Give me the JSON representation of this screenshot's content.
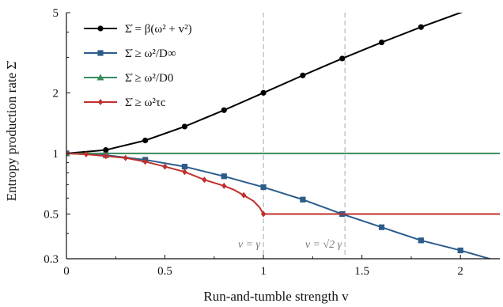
{
  "chart_data": {
    "type": "line",
    "xlabel": "Run-and-tumble strength v",
    "ylabel": "Entropy production rate Σ̇",
    "xlim": [
      0,
      2.2
    ],
    "ylim": [
      0.3,
      5
    ],
    "yscale": "log",
    "xticks": [
      0,
      0.5,
      1,
      1.5,
      2
    ],
    "xtick_labels": [
      "0",
      "0.5",
      "1",
      "1.5",
      "2"
    ],
    "yticks": [
      0.3,
      0.5,
      1,
      2,
      5
    ],
    "ytick_labels": [
      "0.3",
      "0.5",
      "1",
      "2",
      "5"
    ],
    "grid": false,
    "legend_position": "top-left",
    "vlines": [
      {
        "x": 1.0,
        "label": "v = γ"
      },
      {
        "x": 1.414,
        "label": "v = √2 γ"
      }
    ],
    "series": [
      {
        "name": "Σ̇ = β(ω² + v²)",
        "color": "#000000",
        "marker": "circle",
        "x": [
          0,
          0.2,
          0.4,
          0.6,
          0.8,
          1.0,
          1.2,
          1.4,
          1.6,
          1.8,
          2.0,
          2.2
        ],
        "y": [
          1.0,
          1.04,
          1.16,
          1.36,
          1.64,
          2.0,
          2.44,
          2.96,
          3.56,
          4.24,
          5.0,
          5.84
        ],
        "marker_x": [
          0,
          0.2,
          0.4,
          0.6,
          0.8,
          1.0,
          1.2,
          1.4,
          1.6,
          1.8
        ]
      },
      {
        "name": "Σ̇ ≥ ω²/D∞",
        "color": "#2b5c8a",
        "marker": "square",
        "x": [
          0,
          0.2,
          0.4,
          0.6,
          0.8,
          1.0,
          1.2,
          1.4,
          1.6,
          1.8,
          2.0,
          2.2
        ],
        "y": [
          1.0,
          0.98,
          0.93,
          0.86,
          0.77,
          0.68,
          0.59,
          0.5,
          0.43,
          0.37,
          0.33,
          0.29
        ],
        "marker_x": [
          0,
          0.2,
          0.4,
          0.6,
          0.8,
          1.0,
          1.2,
          1.4,
          1.6,
          1.8,
          2.0
        ]
      },
      {
        "name": "Σ̇ ≥ ω²/D0",
        "color": "#3a8a5c",
        "marker": "triangle",
        "x": [
          0,
          0.5,
          1.0,
          1.5,
          2.0,
          2.2
        ],
        "y": [
          1.0,
          1.0,
          1.0,
          1.0,
          1.0,
          1.0
        ],
        "marker_x": [
          0
        ]
      },
      {
        "name": "Σ̇ ≥ ω²τc",
        "color": "#c0302c",
        "marker": "diamond",
        "x": [
          0,
          0.1,
          0.2,
          0.3,
          0.4,
          0.5,
          0.6,
          0.7,
          0.8,
          0.85,
          0.9,
          0.95,
          0.98,
          1.0,
          1.2,
          1.5,
          2.0,
          2.2
        ],
        "y": [
          1.0,
          0.99,
          0.97,
          0.95,
          0.91,
          0.86,
          0.81,
          0.74,
          0.69,
          0.66,
          0.62,
          0.58,
          0.54,
          0.5,
          0.5,
          0.5,
          0.5,
          0.5
        ],
        "marker_x": [
          0,
          0.1,
          0.2,
          0.3,
          0.4,
          0.5,
          0.6,
          0.7,
          0.8,
          0.9,
          1.0
        ]
      }
    ]
  }
}
